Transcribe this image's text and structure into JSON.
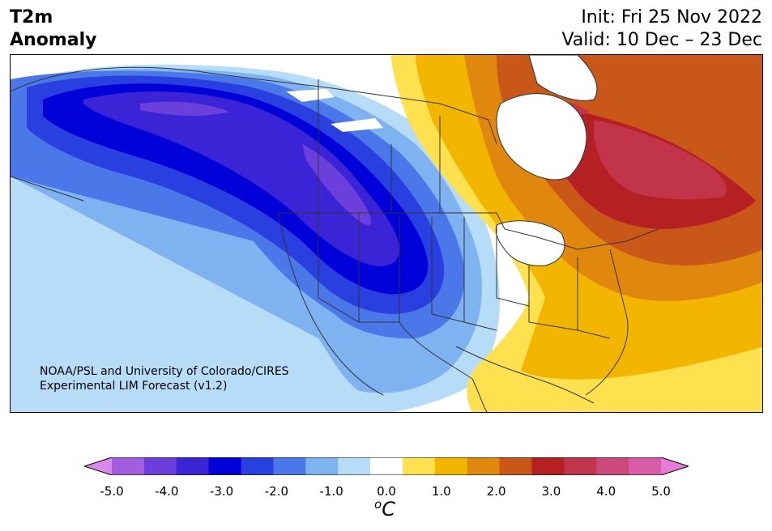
{
  "header": {
    "title_line1": "T2m",
    "title_line2": "Anomaly",
    "init": "Init: Fri 25 Nov 2022",
    "valid": "Valid: 10 Dec – 23 Dec"
  },
  "credit": {
    "line1": "NOAA/PSL and University of Colorado/CIRES",
    "line2": "Experimental LIM Forecast (v1.2)"
  },
  "colorbar": {
    "unit_sup": "o",
    "unit": "C",
    "ticks": [
      "-5.0",
      "-4.0",
      "-3.0",
      "-2.0",
      "-1.0",
      "0.0",
      "1.0",
      "2.0",
      "3.0",
      "4.0",
      "5.0"
    ],
    "colors": [
      "#d98ae8",
      "#a35ee0",
      "#6b3fdc",
      "#3b23d6",
      "#0000d8",
      "#2a3fe0",
      "#4a78e8",
      "#7eb2f0",
      "#b6dcf8",
      "#ffffff",
      "#ffe14f",
      "#f2b600",
      "#e0870e",
      "#c85718",
      "#b52022",
      "#c2344a",
      "#cc4a7a",
      "#d95ca8",
      "#e87ad8"
    ]
  },
  "map": {
    "colors": {
      "ocean": "#ffffff",
      "neutral": "#ffffff",
      "cold1": "#b6dcf8",
      "cold2": "#7eb2f0",
      "cold3": "#4a78e8",
      "cold4": "#2a3fe0",
      "cold5": "#0000d8",
      "cold6": "#3b23d6",
      "cold7": "#6b3fdc",
      "warm1": "#ffe14f",
      "warm2": "#f2b600",
      "warm3": "#e0870e",
      "warm4": "#c85718",
      "warm5": "#b52022",
      "warm6": "#c2344a",
      "border": "#333333"
    }
  }
}
